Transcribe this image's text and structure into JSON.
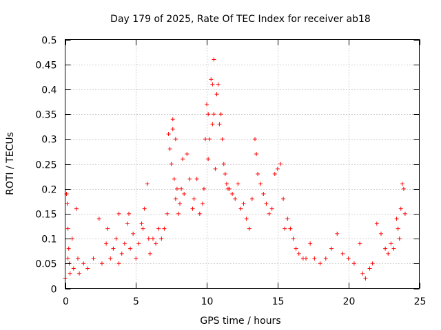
{
  "chart_data": {
    "type": "scatter",
    "title": "Day 179 of 2025, Rate Of TEC Index for receiver ab18",
    "xlabel": "GPS time / hours",
    "ylabel": "ROTI / TECUs",
    "xlim": [
      0,
      25
    ],
    "ylim": [
      0,
      0.5
    ],
    "xticks": [
      0,
      5,
      10,
      15,
      20,
      25
    ],
    "yticks": [
      0,
      0.05,
      0.1,
      0.15,
      0.2,
      0.25,
      0.3,
      0.35,
      0.4,
      0.45,
      0.5
    ],
    "xtick_labels": [
      "0",
      "5",
      "10",
      "15",
      "20",
      "25"
    ],
    "ytick_labels": [
      "0",
      "0.05",
      "0.1",
      "0.15",
      "0.2",
      "0.25",
      "0.3",
      "0.35",
      "0.4",
      "0.45",
      "0.5"
    ],
    "grid": true,
    "marker": "+",
    "color": "#ff0000",
    "series": [
      {
        "x": [
          0.0,
          0.1,
          0.15,
          0.2,
          0.2,
          0.25,
          0.3,
          0.35,
          0.5,
          0.6,
          0.8,
          0.9,
          1.0,
          1.3,
          1.6,
          2.0,
          2.4,
          2.6,
          2.9,
          3.0,
          3.2,
          3.4,
          3.6,
          3.8,
          3.8,
          4.0,
          4.2,
          4.4,
          4.5,
          4.6,
          4.8,
          5.0,
          5.2,
          5.4,
          5.5,
          5.6,
          5.8,
          5.9,
          6.0,
          6.2,
          6.4,
          6.6,
          6.8,
          7.0,
          7.2,
          7.3,
          7.4,
          7.5,
          7.6,
          7.6,
          7.7,
          7.8,
          7.8,
          7.9,
          8.0,
          8.1,
          8.2,
          8.3,
          8.4,
          8.6,
          8.8,
          9.0,
          9.1,
          9.3,
          9.5,
          9.7,
          9.8,
          9.9,
          10.0,
          10.1,
          10.1,
          10.2,
          10.3,
          10.4,
          10.4,
          10.5,
          10.5,
          10.6,
          10.7,
          10.8,
          10.9,
          11.0,
          11.1,
          11.2,
          11.3,
          11.4,
          11.5,
          11.6,
          11.8,
          12.0,
          12.2,
          12.4,
          12.6,
          12.8,
          13.0,
          13.2,
          13.4,
          13.5,
          13.6,
          13.8,
          14.0,
          14.2,
          14.4,
          14.6,
          14.8,
          15.0,
          15.2,
          15.4,
          15.5,
          15.7,
          15.9,
          16.1,
          16.3,
          16.5,
          16.8,
          17.0,
          17.3,
          17.6,
          18.0,
          18.4,
          18.8,
          19.2,
          19.6,
          20.0,
          20.4,
          20.8,
          21.0,
          21.2,
          21.5,
          21.7,
          22.0,
          22.3,
          22.6,
          22.8,
          23.0,
          23.2,
          23.4,
          23.5,
          23.6,
          23.7,
          23.8,
          23.9,
          24.0
        ],
        "y": [
          0.02,
          0.19,
          0.17,
          0.12,
          0.06,
          0.08,
          0.05,
          0.03,
          0.1,
          0.04,
          0.16,
          0.06,
          0.03,
          0.05,
          0.04,
          0.06,
          0.14,
          0.05,
          0.09,
          0.12,
          0.06,
          0.08,
          0.1,
          0.15,
          0.05,
          0.07,
          0.09,
          0.13,
          0.15,
          0.08,
          0.11,
          0.06,
          0.09,
          0.13,
          0.12,
          0.16,
          0.21,
          0.1,
          0.07,
          0.1,
          0.09,
          0.12,
          0.1,
          0.12,
          0.15,
          0.31,
          0.28,
          0.25,
          0.34,
          0.32,
          0.22,
          0.3,
          0.18,
          0.2,
          0.15,
          0.17,
          0.2,
          0.26,
          0.19,
          0.27,
          0.22,
          0.16,
          0.18,
          0.22,
          0.15,
          0.17,
          0.2,
          0.3,
          0.37,
          0.35,
          0.26,
          0.3,
          0.42,
          0.41,
          0.33,
          0.46,
          0.35,
          0.24,
          0.39,
          0.41,
          0.33,
          0.35,
          0.3,
          0.25,
          0.23,
          0.21,
          0.2,
          0.2,
          0.19,
          0.18,
          0.21,
          0.16,
          0.17,
          0.14,
          0.12,
          0.18,
          0.3,
          0.27,
          0.23,
          0.21,
          0.19,
          0.17,
          0.15,
          0.16,
          0.23,
          0.24,
          0.25,
          0.18,
          0.12,
          0.14,
          0.12,
          0.1,
          0.08,
          0.07,
          0.06,
          0.06,
          0.09,
          0.06,
          0.05,
          0.06,
          0.08,
          0.11,
          0.07,
          0.06,
          0.05,
          0.09,
          0.03,
          0.02,
          0.04,
          0.05,
          0.13,
          0.11,
          0.08,
          0.07,
          0.09,
          0.08,
          0.14,
          0.12,
          0.1,
          0.16,
          0.21,
          0.2,
          0.15
        ]
      }
    ]
  }
}
